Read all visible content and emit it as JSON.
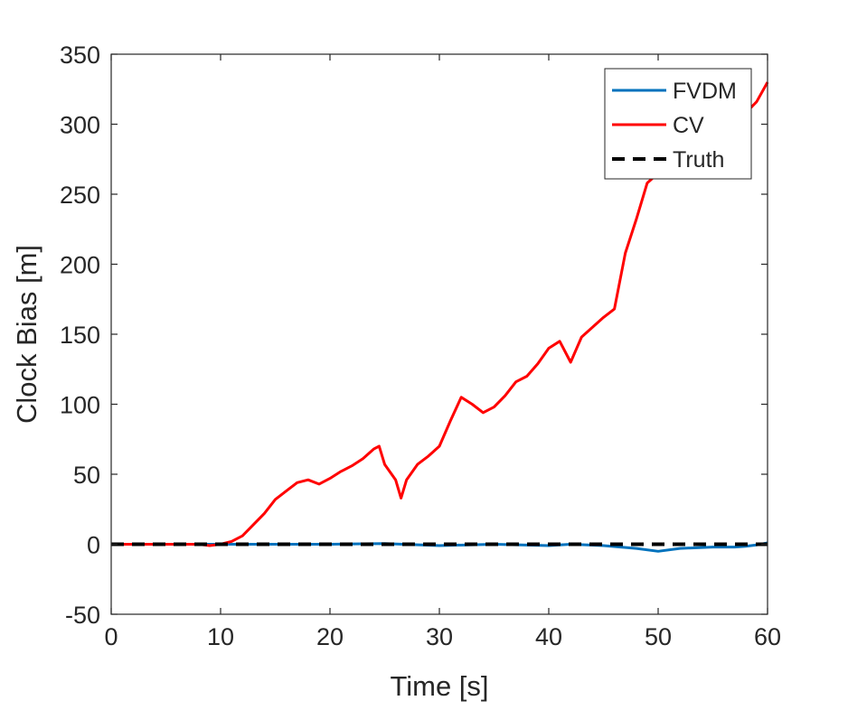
{
  "chart_data": {
    "type": "line",
    "title": "",
    "xlabel": "Time [s]",
    "ylabel": "Clock Bias [m]",
    "xlim": [
      0,
      60
    ],
    "ylim": [
      -50,
      350
    ],
    "x_ticks": [
      0,
      10,
      20,
      30,
      40,
      50,
      60
    ],
    "y_ticks": [
      -50,
      0,
      50,
      100,
      150,
      200,
      250,
      300,
      350
    ],
    "x_tick_labels": [
      "0",
      "10",
      "20",
      "30",
      "40",
      "50",
      "60"
    ],
    "y_tick_labels": [
      "-50",
      "0",
      "50",
      "100",
      "150",
      "200",
      "250",
      "300",
      "350"
    ],
    "grid": false,
    "legend_position": "top-right",
    "series": [
      {
        "name": "FVDM",
        "color": "#0072BD",
        "style": "solid",
        "x": [
          0,
          10,
          20,
          25,
          30,
          35,
          40,
          42,
          45,
          48,
          50,
          52,
          55,
          57,
          58,
          59,
          60
        ],
        "y": [
          0,
          0,
          0,
          0.5,
          -1,
          0,
          -1,
          0,
          -1,
          -3,
          -5,
          -3,
          -2,
          -2,
          -1.5,
          -0.5,
          1
        ]
      },
      {
        "name": "CV",
        "color": "#FF0000",
        "style": "solid",
        "x": [
          0,
          2,
          4,
          6,
          8,
          9,
          10,
          11,
          12,
          13,
          14,
          15,
          16,
          17,
          18,
          19,
          20,
          21,
          22,
          23,
          24,
          24.5,
          25,
          26,
          26.5,
          27,
          28,
          29,
          30,
          31,
          32,
          33,
          34,
          35,
          36,
          37,
          38,
          39,
          40,
          41,
          42,
          43,
          44,
          45,
          46,
          47,
          48,
          49,
          50,
          51,
          52,
          53,
          54,
          55,
          56,
          57,
          58,
          59,
          60
        ],
        "y": [
          0,
          0,
          0,
          0,
          0,
          -1,
          0,
          2,
          6,
          14,
          22,
          32,
          38,
          44,
          46,
          43,
          47,
          52,
          56,
          61,
          68,
          70,
          57,
          46,
          33,
          46,
          57,
          63,
          70,
          88,
          105,
          100,
          94,
          98,
          106,
          116,
          120,
          129,
          140,
          145,
          130,
          148,
          155,
          162,
          168,
          208,
          232,
          258,
          265,
          282,
          292,
          295,
          300,
          312,
          318,
          322,
          308,
          316,
          330
        ]
      },
      {
        "name": "Truth",
        "color": "#000000",
        "style": "dashed",
        "x": [
          0,
          60
        ],
        "y": [
          0,
          0
        ]
      }
    ]
  }
}
